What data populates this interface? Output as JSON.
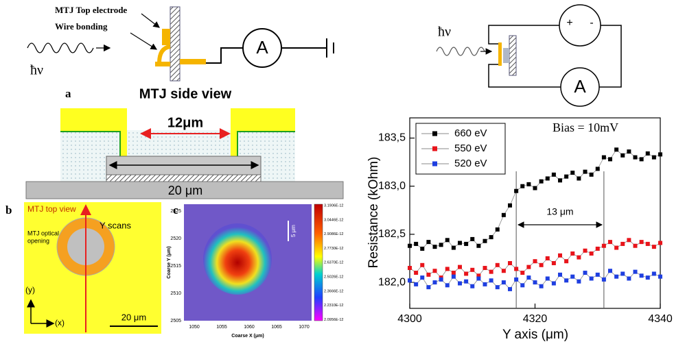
{
  "diagram": {
    "top_left": {
      "electrode": "MTJ Top electrode",
      "bonding": "Wire bonding",
      "photon": "ħν",
      "ammeter": "A"
    },
    "panel_a": {
      "letter": "a",
      "title": "MTJ side view",
      "gap": "12μm",
      "substrate": "20 μm"
    },
    "panel_b": {
      "letter": "b",
      "title": "MTJ top view",
      "scan": "Y scans",
      "opening_1": "MTJ optical",
      "opening_2": "opening",
      "y_axis": "(y)",
      "x_axis": "(x)",
      "scale": "20 μm"
    },
    "panel_c": {
      "letter": "c",
      "y_label": "Coarse Y (μm)",
      "x_label": "Coarse X (μm)",
      "scale": "5 μm",
      "yticks": [
        "2525",
        "2520",
        "2515",
        "2510",
        "2505"
      ],
      "xticks": [
        "1050",
        "1055",
        "1060",
        "1065",
        "1070"
      ],
      "colorbar": [
        "3.1906E-12",
        "3.0446E-12",
        "2.9086E-12",
        "2.7730E-12",
        "2.6370E-12",
        "2.5026E-12",
        "2.3666E-12",
        "2.2310E-12",
        "2.0956E-12"
      ]
    },
    "top_right": {
      "photon": "ħν",
      "plus": "+",
      "minus": "-",
      "ammeter": "A"
    }
  },
  "chart_data": {
    "type": "scatter",
    "x_label": "Y axis (μm)",
    "y_label": "Resistance (kOhm)",
    "annotations": [
      "Bias = 10mV",
      "13 μm"
    ],
    "x": [
      4300,
      4301,
      4302,
      4303,
      4304,
      4305,
      4306,
      4307,
      4308,
      4309,
      4310,
      4311,
      4312,
      4313,
      4314,
      4315,
      4316,
      4317,
      4318,
      4319,
      4320,
      4321,
      4322,
      4323,
      4324,
      4325,
      4326,
      4327,
      4328,
      4329,
      4330,
      4331,
      4332,
      4333,
      4334,
      4335,
      4336,
      4337,
      4338,
      4339,
      4340
    ],
    "series": [
      {
        "name": "660 eV",
        "color": "#000000",
        "values": [
          182.38,
          182.4,
          182.35,
          182.42,
          182.37,
          182.39,
          182.44,
          182.36,
          182.41,
          182.4,
          182.45,
          182.38,
          182.43,
          182.47,
          182.55,
          182.7,
          182.8,
          182.95,
          183.0,
          183.02,
          182.98,
          183.05,
          183.08,
          183.12,
          183.06,
          183.1,
          183.14,
          183.08,
          183.15,
          183.12,
          183.18,
          183.3,
          183.28,
          183.38,
          183.32,
          183.36,
          183.3,
          183.28,
          183.34,
          183.3,
          183.33
        ]
      },
      {
        "name": "550 eV",
        "color": "#e8141b",
        "values": [
          182.15,
          182.1,
          182.18,
          182.08,
          182.12,
          182.05,
          182.14,
          182.1,
          182.16,
          182.09,
          182.13,
          182.07,
          182.15,
          182.11,
          182.18,
          182.12,
          182.2,
          182.14,
          182.1,
          182.16,
          182.22,
          182.18,
          182.25,
          182.2,
          182.28,
          182.22,
          182.3,
          182.26,
          182.33,
          182.3,
          182.35,
          182.38,
          182.42,
          182.36,
          182.4,
          182.44,
          182.38,
          182.42,
          182.4,
          182.37,
          182.41
        ]
      },
      {
        "name": "520 eV",
        "color": "#1f3fe0",
        "values": [
          182.02,
          181.98,
          182.05,
          181.95,
          182.0,
          182.03,
          181.97,
          182.06,
          181.99,
          182.01,
          181.96,
          182.04,
          181.98,
          182.02,
          181.95,
          182.0,
          181.93,
          182.03,
          181.97,
          182.05,
          182.0,
          181.96,
          182.04,
          181.99,
          182.08,
          182.02,
          182.06,
          182.01,
          182.1,
          182.04,
          182.08,
          182.03,
          182.12,
          182.06,
          182.09,
          182.04,
          182.11,
          182.07,
          182.05,
          182.09,
          182.06
        ]
      }
    ],
    "xlim": [
      4300,
      4340
    ],
    "xticks": [
      4300,
      4320,
      4340
    ],
    "ylim": [
      181.73,
      183.71
    ],
    "yticks": [
      {
        "value": 182.0,
        "label": "182,0"
      },
      {
        "value": 182.5,
        "label": "182,5"
      },
      {
        "value": 183.0,
        "label": "183,0"
      },
      {
        "value": 183.5,
        "label": "183,5"
      }
    ],
    "legend": "top-left"
  }
}
